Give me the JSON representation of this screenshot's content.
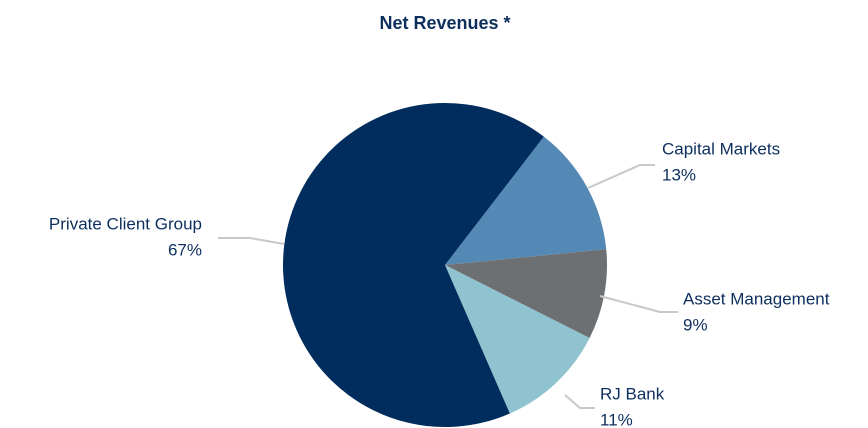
{
  "chart_data": {
    "type": "pie",
    "title": "Net Revenues *",
    "categories": [
      "Capital Markets",
      "Asset Management",
      "RJ Bank",
      "Private Client Group"
    ],
    "values": [
      13,
      9,
      11,
      67
    ],
    "value_labels": [
      "13%",
      "9%",
      "11%",
      "67%"
    ],
    "colors": [
      "#5589b5",
      "#6d7073",
      "#8fc3cf",
      "#002d5e"
    ]
  }
}
